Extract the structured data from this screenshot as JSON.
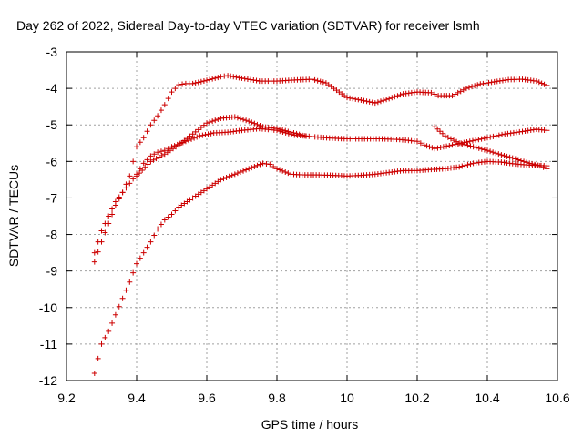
{
  "chart_data": {
    "type": "scatter",
    "title": "Day 262 of 2022, Sidereal Day-to-day VTEC variation (SDTVAR) for receiver lsmh",
    "xlabel": "GPS time / hours",
    "ylabel": "SDTVAR / TECUs",
    "xlim": [
      9.2,
      10.6
    ],
    "ylim": [
      -12,
      -3
    ],
    "xticks": [
      9.2,
      9.4,
      9.6,
      9.8,
      10,
      10.2,
      10.4,
      10.6
    ],
    "xtick_labels": [
      "9.2",
      "9.4",
      "9.6",
      "9.8",
      "10",
      "10.2",
      "10.4",
      "10.6"
    ],
    "yticks": [
      -3,
      -4,
      -5,
      -6,
      -7,
      -8,
      -9,
      -10,
      -11,
      -12
    ],
    "ytick_labels": [
      "-3",
      "-4",
      "-5",
      "-6",
      "-7",
      "-8",
      "-9",
      "-10",
      "-11",
      "-12"
    ],
    "grid": true,
    "marker": "+",
    "color": "#cc0000",
    "series": [
      {
        "name": "upper",
        "points": [
          [
            9.28,
            -8.75
          ],
          [
            9.3,
            -8.2
          ],
          [
            9.32,
            -7.7
          ],
          [
            9.34,
            -7.2
          ],
          [
            9.36,
            -6.85
          ],
          [
            9.38,
            -6.4
          ],
          [
            9.4,
            -5.6
          ],
          [
            9.42,
            -5.35
          ],
          [
            9.44,
            -5.0
          ],
          [
            9.46,
            -4.75
          ],
          [
            9.48,
            -4.45
          ],
          [
            9.5,
            -4.1
          ],
          [
            9.52,
            -3.9
          ],
          [
            9.54,
            -3.87
          ],
          [
            9.56,
            -3.87
          ],
          [
            9.6,
            -3.78
          ],
          [
            9.64,
            -3.68
          ],
          [
            9.66,
            -3.65
          ],
          [
            9.7,
            -3.72
          ],
          [
            9.75,
            -3.8
          ],
          [
            9.8,
            -3.8
          ],
          [
            9.85,
            -3.77
          ],
          [
            9.9,
            -3.75
          ],
          [
            9.94,
            -3.85
          ],
          [
            9.97,
            -4.05
          ],
          [
            10.0,
            -4.25
          ],
          [
            10.04,
            -4.32
          ],
          [
            10.08,
            -4.4
          ],
          [
            10.12,
            -4.28
          ],
          [
            10.16,
            -4.15
          ],
          [
            10.2,
            -4.1
          ],
          [
            10.24,
            -4.12
          ],
          [
            10.26,
            -4.2
          ],
          [
            10.3,
            -4.2
          ],
          [
            10.34,
            -4.0
          ],
          [
            10.38,
            -3.88
          ],
          [
            10.42,
            -3.82
          ],
          [
            10.46,
            -3.76
          ],
          [
            10.5,
            -3.75
          ],
          [
            10.54,
            -3.8
          ],
          [
            10.57,
            -3.92
          ]
        ]
      },
      {
        "name": "middle",
        "points": [
          [
            9.28,
            -8.5
          ],
          [
            9.3,
            -7.9
          ],
          [
            9.32,
            -7.5
          ],
          [
            9.34,
            -7.1
          ],
          [
            9.36,
            -6.85
          ],
          [
            9.38,
            -6.6
          ],
          [
            9.4,
            -6.35
          ],
          [
            9.42,
            -6.05
          ],
          [
            9.44,
            -5.85
          ],
          [
            9.46,
            -5.75
          ],
          [
            9.48,
            -5.7
          ],
          [
            9.5,
            -5.6
          ],
          [
            9.54,
            -5.45
          ],
          [
            9.58,
            -5.3
          ],
          [
            9.62,
            -5.22
          ],
          [
            9.66,
            -5.2
          ],
          [
            9.7,
            -5.15
          ],
          [
            9.75,
            -5.1
          ],
          [
            9.8,
            -5.15
          ],
          [
            9.85,
            -5.28
          ],
          [
            9.9,
            -5.32
          ],
          [
            9.95,
            -5.36
          ],
          [
            10.0,
            -5.38
          ],
          [
            10.05,
            -5.38
          ],
          [
            10.1,
            -5.38
          ],
          [
            10.15,
            -5.4
          ],
          [
            10.2,
            -5.45
          ],
          [
            10.22,
            -5.55
          ],
          [
            10.25,
            -5.65
          ],
          [
            10.3,
            -5.55
          ],
          [
            10.35,
            -5.45
          ],
          [
            10.4,
            -5.35
          ],
          [
            10.45,
            -5.25
          ],
          [
            10.5,
            -5.18
          ],
          [
            10.54,
            -5.12
          ],
          [
            10.57,
            -5.15
          ]
        ]
      },
      {
        "name": "hump",
        "points": [
          [
            9.4,
            -6.4
          ],
          [
            9.44,
            -6.0
          ],
          [
            9.48,
            -5.8
          ],
          [
            9.52,
            -5.55
          ],
          [
            9.56,
            -5.25
          ],
          [
            9.6,
            -4.95
          ],
          [
            9.64,
            -4.82
          ],
          [
            9.68,
            -4.78
          ],
          [
            9.72,
            -4.9
          ],
          [
            9.76,
            -5.05
          ],
          [
            9.8,
            -5.1
          ],
          [
            9.84,
            -5.2
          ],
          [
            9.88,
            -5.3
          ]
        ]
      },
      {
        "name": "lower",
        "points": [
          [
            9.28,
            -11.8
          ],
          [
            9.3,
            -11.0
          ],
          [
            9.32,
            -10.65
          ],
          [
            9.34,
            -10.2
          ],
          [
            9.36,
            -9.75
          ],
          [
            9.38,
            -9.3
          ],
          [
            9.4,
            -8.8
          ],
          [
            9.42,
            -8.5
          ],
          [
            9.44,
            -8.2
          ],
          [
            9.46,
            -7.85
          ],
          [
            9.48,
            -7.6
          ],
          [
            9.5,
            -7.45
          ],
          [
            9.52,
            -7.25
          ],
          [
            9.56,
            -7.0
          ],
          [
            9.6,
            -6.75
          ],
          [
            9.64,
            -6.5
          ],
          [
            9.68,
            -6.35
          ],
          [
            9.72,
            -6.2
          ],
          [
            9.76,
            -6.05
          ],
          [
            9.78,
            -6.08
          ],
          [
            9.8,
            -6.2
          ],
          [
            9.84,
            -6.35
          ],
          [
            9.88,
            -6.37
          ],
          [
            9.92,
            -6.37
          ],
          [
            9.96,
            -6.38
          ],
          [
            10.0,
            -6.4
          ],
          [
            10.04,
            -6.38
          ],
          [
            10.08,
            -6.35
          ],
          [
            10.12,
            -6.3
          ],
          [
            10.16,
            -6.25
          ],
          [
            10.2,
            -6.25
          ],
          [
            10.24,
            -6.22
          ],
          [
            10.28,
            -6.2
          ],
          [
            10.32,
            -6.15
          ],
          [
            10.36,
            -6.05
          ],
          [
            10.4,
            -6.0
          ],
          [
            10.44,
            -6.02
          ],
          [
            10.48,
            -6.07
          ],
          [
            10.52,
            -6.1
          ],
          [
            10.57,
            -6.12
          ]
        ]
      },
      {
        "name": "late-descending",
        "points": [
          [
            10.25,
            -5.05
          ],
          [
            10.28,
            -5.3
          ],
          [
            10.32,
            -5.5
          ],
          [
            10.36,
            -5.6
          ],
          [
            10.4,
            -5.7
          ],
          [
            10.44,
            -5.82
          ],
          [
            10.48,
            -5.93
          ],
          [
            10.52,
            -6.05
          ],
          [
            10.55,
            -6.12
          ],
          [
            10.57,
            -6.2
          ]
        ]
      }
    ]
  }
}
